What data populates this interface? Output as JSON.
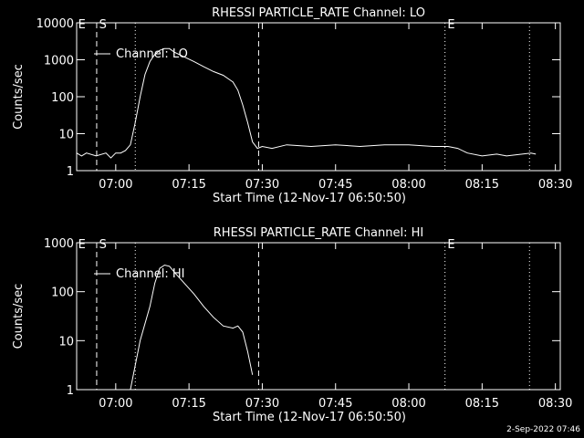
{
  "chart_data": [
    {
      "type": "line",
      "title": "RHESSI PARTICLE_RATE Channel: LO",
      "xlabel": "Start Time (12-Nov-17 06:50:50)",
      "ylabel": "Counts/sec",
      "log_y": true,
      "legend": "upper left",
      "xlim": [
        412,
        511
      ],
      "xticks": [
        {
          "value": 420,
          "label": "07:00"
        },
        {
          "value": 435,
          "label": "07:15"
        },
        {
          "value": 450,
          "label": "07:30"
        },
        {
          "value": 465,
          "label": "07:45"
        },
        {
          "value": 480,
          "label": "08:00"
        },
        {
          "value": 495,
          "label": "08:15"
        },
        {
          "value": 510,
          "label": "08:30"
        }
      ],
      "ylim": [
        1,
        10000
      ],
      "yticks": [
        1,
        10,
        100,
        1000,
        10000
      ],
      "vlines": [
        {
          "x": 416.1,
          "style": "dashed"
        },
        {
          "x": 424,
          "style": "dotted"
        },
        {
          "x": 449.25,
          "style": "dashed"
        },
        {
          "x": 487.4,
          "style": "dotted"
        },
        {
          "x": 504.7,
          "style": "dotted"
        }
      ],
      "annotations": [
        {
          "text": "E",
          "x": 412.3
        },
        {
          "text": "S",
          "x": 416.6
        },
        {
          "text": "E",
          "x": 487.9
        }
      ],
      "x": [
        412,
        413,
        414,
        416,
        418,
        419,
        420,
        421,
        422,
        423,
        424,
        425,
        426,
        427,
        428,
        429,
        430,
        431,
        432,
        434,
        436,
        438,
        440,
        442,
        444,
        445,
        446,
        447,
        448,
        449,
        450,
        452,
        455,
        460,
        465,
        470,
        475,
        480,
        485,
        488,
        490,
        492,
        495,
        498,
        500,
        505,
        506
      ],
      "series": [
        {
          "name": "Channel: LO",
          "color": "#ffffff",
          "values": [
            3,
            2.5,
            3,
            2.5,
            3,
            2.2,
            3,
            3,
            3.5,
            5,
            20,
            100,
            400,
            900,
            1400,
            1800,
            2000,
            2000,
            1600,
            1200,
            900,
            650,
            480,
            380,
            250,
            150,
            60,
            20,
            6,
            4,
            4.5,
            4,
            5,
            4.5,
            5,
            4.5,
            5,
            5,
            4.5,
            4.5,
            4,
            3,
            2.5,
            2.8,
            2.5,
            3,
            2.8
          ]
        }
      ]
    },
    {
      "type": "line",
      "title": "RHESSI PARTICLE_RATE Channel: HI",
      "xlabel": "Start Time (12-Nov-17 06:50:50)",
      "ylabel": "Counts/sec",
      "log_y": true,
      "legend": "upper left",
      "xlim": [
        412,
        511
      ],
      "xticks": [
        {
          "value": 420,
          "label": "07:00"
        },
        {
          "value": 435,
          "label": "07:15"
        },
        {
          "value": 450,
          "label": "07:30"
        },
        {
          "value": 465,
          "label": "07:45"
        },
        {
          "value": 480,
          "label": "08:00"
        },
        {
          "value": 495,
          "label": "08:15"
        },
        {
          "value": 510,
          "label": "08:30"
        }
      ],
      "ylim": [
        1,
        1000
      ],
      "yticks": [
        1,
        10,
        100,
        1000
      ],
      "vlines": [
        {
          "x": 416.1,
          "style": "dashed"
        },
        {
          "x": 424,
          "style": "dotted"
        },
        {
          "x": 449.25,
          "style": "dashed"
        },
        {
          "x": 487.4,
          "style": "dotted"
        },
        {
          "x": 504.7,
          "style": "dotted"
        }
      ],
      "annotations": [
        {
          "text": "E",
          "x": 412.3
        },
        {
          "text": "S",
          "x": 416.6
        },
        {
          "text": "E",
          "x": 487.9
        }
      ],
      "x": [
        423,
        425,
        427,
        428,
        429,
        430,
        431,
        432,
        434,
        436,
        438,
        440,
        442,
        444,
        445,
        446,
        447,
        448
      ],
      "series": [
        {
          "name": "Channel: HI",
          "color": "#ffffff",
          "values": [
            1,
            10,
            50,
            150,
            300,
            350,
            330,
            250,
            150,
            90,
            50,
            30,
            20,
            18,
            20,
            15,
            6,
            2
          ]
        }
      ]
    }
  ],
  "footer": "2-Sep-2022 07:46"
}
